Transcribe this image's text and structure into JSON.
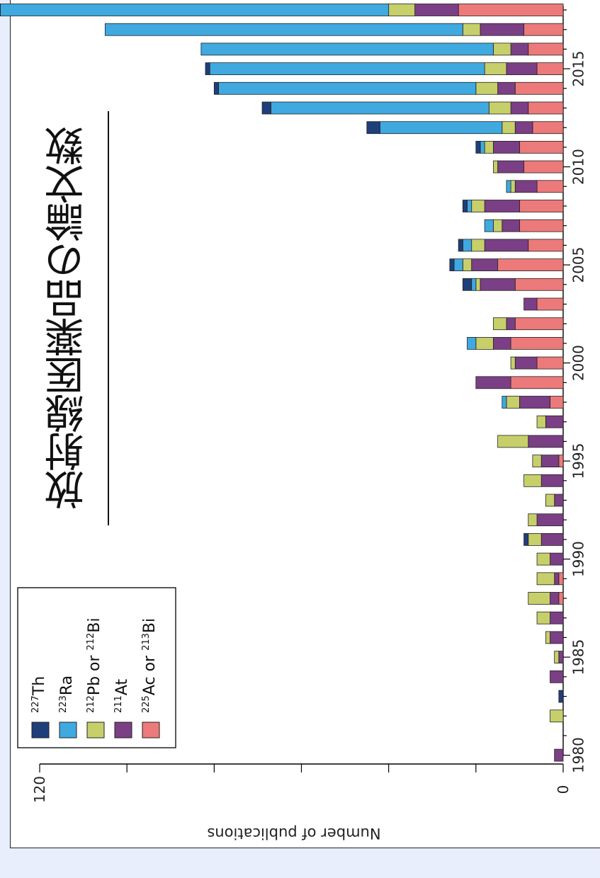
{
  "title": "放射線医薬品の論文数",
  "chart_data": {
    "type": "bar",
    "orientation": "horizontal-bars (image rotated 90°, year axis runs top-to-bottom)",
    "ylabel": "Number of publications",
    "ylim": [
      0,
      120
    ],
    "ytick_labels_shown": [
      "0",
      "120"
    ],
    "xtick_labels": [
      "1980",
      "1985",
      "1990",
      "1995",
      "2000",
      "2005",
      "2010",
      "2015"
    ],
    "categories": [
      "1980",
      "1981",
      "1982",
      "1983",
      "1984",
      "1985",
      "1986",
      "1987",
      "1988",
      "1989",
      "1990",
      "1991",
      "1992",
      "1993",
      "1994",
      "1995",
      "1996",
      "1997",
      "1998",
      "1999",
      "2000",
      "2001",
      "2002",
      "2003",
      "2004",
      "2005",
      "2006",
      "2007",
      "2008",
      "2009",
      "2010",
      "2011",
      "2012",
      "2013",
      "2014",
      "2015",
      "2016",
      "2017",
      "2018"
    ],
    "legend": {
      "placement": "lower-left of rotated figure",
      "entries": [
        {
          "iso_mass": "227",
          "element": "Th",
          "suffix": "",
          "color": "#1f3f7a"
        },
        {
          "iso_mass": "223",
          "element": "Ra",
          "suffix": "",
          "color": "#3fa9e0"
        },
        {
          "iso_mass": "212",
          "element": "Pb",
          "suffix": " or ",
          "iso_mass2": "212",
          "element2": "Bi",
          "color": "#c7cf6b"
        },
        {
          "iso_mass": "211",
          "element": "At",
          "suffix": "",
          "color": "#7b3f85"
        },
        {
          "iso_mass": "225",
          "element": "Ac",
          "suffix": " or ",
          "iso_mass2": "213",
          "element2": "Bi",
          "color": "#ec7a7a"
        }
      ]
    },
    "series": [
      {
        "name": "227Th",
        "values": [
          0,
          0,
          0,
          1,
          0,
          0,
          0,
          0,
          0,
          0,
          0,
          1,
          0,
          0,
          0,
          0,
          0,
          0,
          0,
          0,
          0,
          0,
          0,
          0,
          2,
          1,
          1,
          0,
          1,
          0,
          0,
          1,
          3,
          2,
          1,
          1,
          0,
          0,
          1
        ]
      },
      {
        "name": "223Ra",
        "values": [
          0,
          0,
          0,
          0,
          0,
          0,
          0,
          0,
          0,
          0,
          0,
          0,
          0,
          0,
          0,
          0,
          0,
          0,
          1,
          0,
          0,
          2,
          0,
          0,
          1,
          2,
          2,
          2,
          1,
          1,
          0,
          1,
          28,
          50,
          59,
          63,
          67,
          82,
          89
        ]
      },
      {
        "name": "212Pb or 212Bi",
        "values": [
          0,
          0,
          3,
          0,
          0,
          1,
          1,
          3,
          5,
          4,
          3,
          3,
          2,
          2,
          4,
          2,
          7,
          2,
          3,
          0,
          1,
          4,
          3,
          0,
          1,
          2,
          3,
          2,
          3,
          1,
          1,
          2,
          3,
          5,
          5,
          5,
          4,
          4,
          6
        ]
      },
      {
        "name": "211At",
        "values": [
          2,
          0,
          0,
          0,
          3,
          1,
          3,
          3,
          2,
          1,
          3,
          5,
          6,
          2,
          5,
          4,
          8,
          4,
          7,
          8,
          5,
          4,
          2,
          3,
          8,
          6,
          10,
          4,
          8,
          5,
          6,
          6,
          4,
          4,
          4,
          7,
          4,
          10,
          10
        ]
      },
      {
        "name": "225Ac or 213Bi",
        "values": [
          0,
          0,
          0,
          0,
          0,
          0,
          0,
          0,
          1,
          1,
          0,
          0,
          0,
          0,
          0,
          1,
          0,
          0,
          3,
          12,
          6,
          12,
          11,
          6,
          11,
          15,
          8,
          10,
          10,
          6,
          9,
          10,
          7,
          8,
          11,
          6,
          8,
          9,
          24
        ]
      }
    ],
    "grid": false
  }
}
